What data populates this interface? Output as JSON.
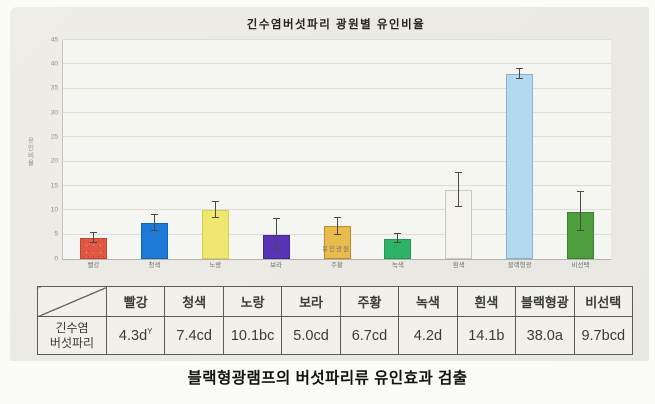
{
  "page": {
    "background": "#fbfbf8"
  },
  "figure": {
    "caption": "블랙형광램프의 버섯파리류 유인효과 검출"
  },
  "chart_data": {
    "type": "bar",
    "title": "긴수염버섯파리 광원별 유인비율",
    "xlabel": "유인광원",
    "ylabel": "유인비율",
    "ylim": [
      0,
      45
    ],
    "yticks": [
      0,
      5,
      10,
      15,
      20,
      25,
      30,
      35,
      40,
      45
    ],
    "grid": true,
    "legend_position": "none",
    "categories": [
      "빨강",
      "청색",
      "노랑",
      "보라",
      "주황",
      "녹색",
      "흰색",
      "블랙형광",
      "비선택"
    ],
    "values": [
      4.3,
      7.4,
      10.1,
      5.0,
      6.7,
      4.2,
      14.1,
      38.0,
      9.7
    ],
    "errors": [
      1.0,
      1.6,
      1.7,
      3.2,
      1.7,
      1.0,
      3.5,
      1.0,
      4.0
    ],
    "bar_colors": [
      "#e05843",
      "#1d79d6",
      "#efe76f",
      "#5733b5",
      "#e9bb4c",
      "#2db266",
      "#f4f3ed",
      "#b3d8ef",
      "#4f9e3e"
    ],
    "bar_edge_colors": [
      "#c24431",
      "#1563b8",
      "#d9cf4e",
      "#44279c",
      "#c08a2e",
      "#1f9a54",
      "#c9c9c2",
      "#7fb4d8",
      "#3c8230"
    ]
  },
  "table": {
    "row_label_lines": [
      "긴수염",
      "버섯파리"
    ],
    "columns": [
      "빨강",
      "청색",
      "노랑",
      "보라",
      "주황",
      "녹색",
      "흰색",
      "블랙형광",
      "비선택"
    ],
    "values": [
      {
        "text": "4.3d",
        "sup": "Y"
      },
      {
        "text": "7.4cd",
        "sup": ""
      },
      {
        "text": "10.1bc",
        "sup": ""
      },
      {
        "text": "5.0cd",
        "sup": ""
      },
      {
        "text": "6.7cd",
        "sup": ""
      },
      {
        "text": "4.2d",
        "sup": ""
      },
      {
        "text": "14.1b",
        "sup": ""
      },
      {
        "text": "38.0a",
        "sup": ""
      },
      {
        "text": "9.7bcd",
        "sup": ""
      }
    ]
  }
}
